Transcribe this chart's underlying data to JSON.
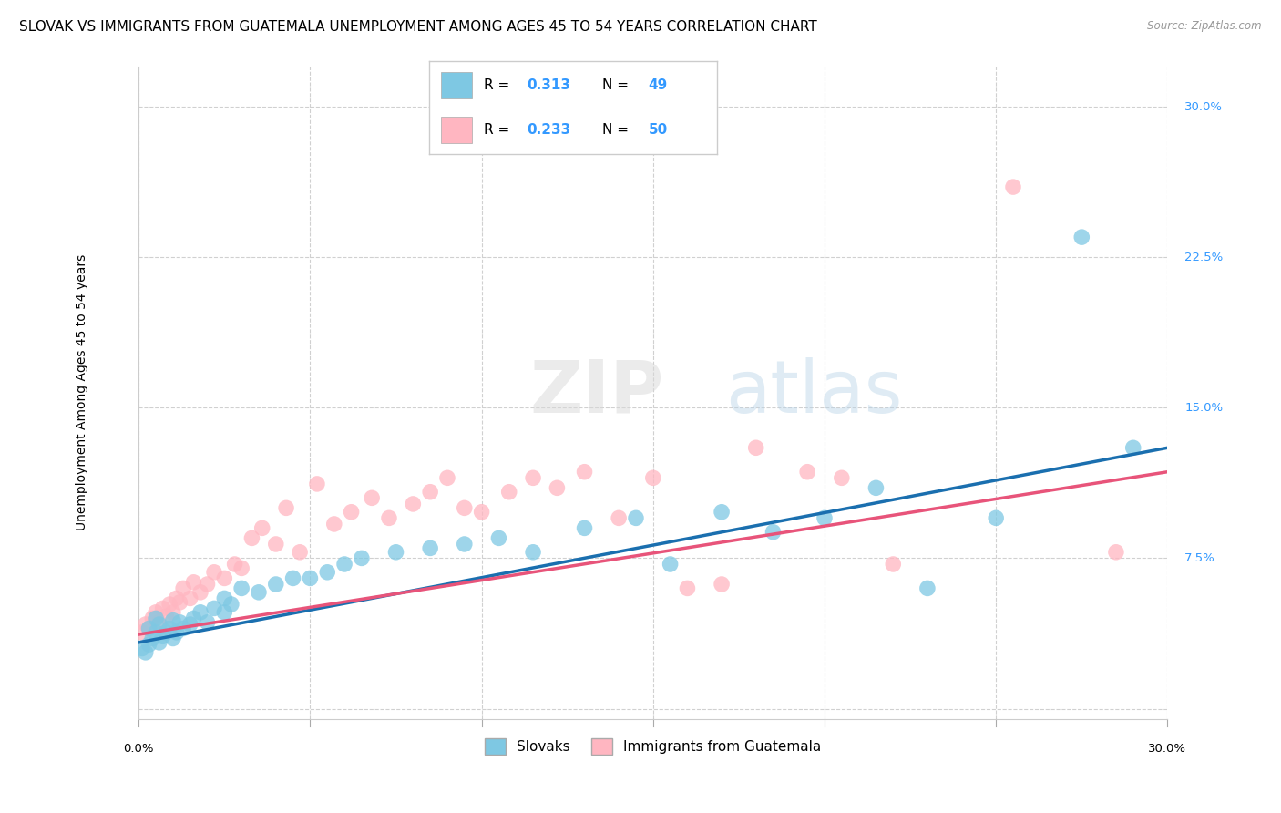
{
  "title": "SLOVAK VS IMMIGRANTS FROM GUATEMALA UNEMPLOYMENT AMONG AGES 45 TO 54 YEARS CORRELATION CHART",
  "source": "Source: ZipAtlas.com",
  "ylabel": "Unemployment Among Ages 45 to 54 years",
  "xlim": [
    0.0,
    0.3
  ],
  "ylim": [
    -0.005,
    0.32
  ],
  "x_ticks": [
    0.0,
    0.05,
    0.1,
    0.15,
    0.2,
    0.25,
    0.3
  ],
  "x_tick_labels": [
    "0.0%",
    "",
    "",
    "",
    "",
    "",
    "30.0%"
  ],
  "y_ticks": [
    0.0,
    0.075,
    0.15,
    0.225,
    0.3
  ],
  "y_tick_labels": [
    "",
    "7.5%",
    "15.0%",
    "22.5%",
    "30.0%"
  ],
  "slovak_color": "#7ec8e3",
  "guatemala_color": "#ffb6c1",
  "line_slovak_color": "#1a6faf",
  "line_guatemala_color": "#e8547a",
  "R_slovak": 0.313,
  "N_slovak": 49,
  "R_guatemala": 0.233,
  "N_guatemala": 50,
  "legend_label_1": "Slovaks",
  "legend_label_2": "Immigrants from Guatemala",
  "background_color": "#ffffff",
  "grid_color": "#d0d0d0",
  "slovak_x": [
    0.001,
    0.002,
    0.003,
    0.003,
    0.004,
    0.005,
    0.005,
    0.006,
    0.006,
    0.007,
    0.008,
    0.009,
    0.01,
    0.01,
    0.011,
    0.012,
    0.013,
    0.015,
    0.016,
    0.018,
    0.02,
    0.022,
    0.025,
    0.025,
    0.027,
    0.03,
    0.035,
    0.04,
    0.045,
    0.05,
    0.055,
    0.06,
    0.065,
    0.075,
    0.085,
    0.095,
    0.105,
    0.115,
    0.13,
    0.145,
    0.155,
    0.17,
    0.185,
    0.2,
    0.215,
    0.23,
    0.25,
    0.275,
    0.29
  ],
  "slovak_y": [
    0.03,
    0.028,
    0.032,
    0.04,
    0.035,
    0.038,
    0.045,
    0.033,
    0.042,
    0.036,
    0.038,
    0.04,
    0.035,
    0.044,
    0.038,
    0.043,
    0.04,
    0.042,
    0.045,
    0.048,
    0.043,
    0.05,
    0.048,
    0.055,
    0.052,
    0.06,
    0.058,
    0.062,
    0.065,
    0.065,
    0.068,
    0.072,
    0.075,
    0.078,
    0.08,
    0.082,
    0.085,
    0.078,
    0.09,
    0.095,
    0.072,
    0.098,
    0.088,
    0.095,
    0.11,
    0.06,
    0.095,
    0.235,
    0.13
  ],
  "guatemala_x": [
    0.001,
    0.002,
    0.003,
    0.004,
    0.005,
    0.006,
    0.007,
    0.008,
    0.009,
    0.01,
    0.011,
    0.012,
    0.013,
    0.015,
    0.016,
    0.018,
    0.02,
    0.022,
    0.025,
    0.028,
    0.03,
    0.033,
    0.036,
    0.04,
    0.043,
    0.047,
    0.052,
    0.057,
    0.062,
    0.068,
    0.073,
    0.08,
    0.085,
    0.09,
    0.095,
    0.1,
    0.108,
    0.115,
    0.122,
    0.13,
    0.14,
    0.15,
    0.16,
    0.17,
    0.18,
    0.195,
    0.205,
    0.22,
    0.255,
    0.285
  ],
  "guatemala_y": [
    0.038,
    0.042,
    0.04,
    0.045,
    0.048,
    0.043,
    0.05,
    0.046,
    0.052,
    0.048,
    0.055,
    0.053,
    0.06,
    0.055,
    0.063,
    0.058,
    0.062,
    0.068,
    0.065,
    0.072,
    0.07,
    0.085,
    0.09,
    0.082,
    0.1,
    0.078,
    0.112,
    0.092,
    0.098,
    0.105,
    0.095,
    0.102,
    0.108,
    0.115,
    0.1,
    0.098,
    0.108,
    0.115,
    0.11,
    0.118,
    0.095,
    0.115,
    0.06,
    0.062,
    0.13,
    0.118,
    0.115,
    0.072,
    0.26,
    0.078
  ],
  "title_fontsize": 11,
  "axis_label_fontsize": 10,
  "tick_fontsize": 9.5,
  "legend_fontsize": 11,
  "watermark_text": "ZIPatlas"
}
